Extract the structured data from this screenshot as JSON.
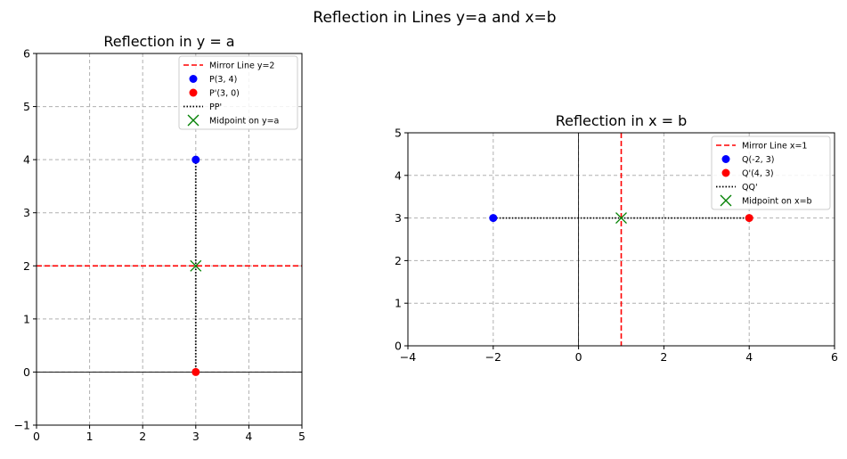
{
  "figure": {
    "suptitle": "Reflection in Lines y=a and x=b"
  },
  "colors": {
    "mirror": "#ff0000",
    "original": "#0000ff",
    "image": "#ff0000",
    "segment": "#000000",
    "midpoint": "#008000",
    "grid": "#b0b0b0"
  },
  "chart_data": [
    {
      "type": "line",
      "title": "Reflection in y = a",
      "xlim": [
        0,
        5
      ],
      "ylim": [
        -1,
        6
      ],
      "xticks": [
        0,
        1,
        2,
        3,
        4,
        5
      ],
      "xtick_labels": [
        "0",
        "1",
        "2",
        "3",
        "4",
        "5"
      ],
      "yticks": [
        -1,
        0,
        1,
        2,
        3,
        4,
        5,
        6
      ],
      "ytick_labels": [
        "−1",
        "0",
        "1",
        "2",
        "3",
        "4",
        "5",
        "6"
      ],
      "grid": true,
      "legend_position": "top-right",
      "axis_lines": {
        "y": 0
      },
      "mirror": {
        "orientation": "horizontal",
        "value": 2,
        "label": "Mirror Line y=2"
      },
      "original": {
        "x": 3,
        "y": 4,
        "label": "P(3, 4)"
      },
      "image": {
        "x": 3,
        "y": 0,
        "label": "P'(3, 0)"
      },
      "segment": {
        "x": [
          3,
          3
        ],
        "y": [
          4,
          0
        ],
        "label": "PP'"
      },
      "midpoint": {
        "x": 3,
        "y": 2,
        "label": "Midpoint on y=a"
      }
    },
    {
      "type": "line",
      "title": "Reflection in x = b",
      "xlim": [
        -4,
        6
      ],
      "ylim": [
        0,
        5
      ],
      "xticks": [
        -4,
        -2,
        0,
        2,
        4,
        6
      ],
      "xtick_labels": [
        "−4",
        "−2",
        "0",
        "2",
        "4",
        "6"
      ],
      "yticks": [
        0,
        1,
        2,
        3,
        4,
        5
      ],
      "ytick_labels": [
        "0",
        "1",
        "2",
        "3",
        "4",
        "5"
      ],
      "grid": true,
      "legend_position": "top-right",
      "axis_lines": {
        "x": 0
      },
      "mirror": {
        "orientation": "vertical",
        "value": 1,
        "label": "Mirror Line x=1"
      },
      "original": {
        "x": -2,
        "y": 3,
        "label": "Q(-2, 3)"
      },
      "image": {
        "x": 4,
        "y": 3,
        "label": "Q'(4, 3)"
      },
      "segment": {
        "x": [
          -2,
          4
        ],
        "y": [
          3,
          3
        ],
        "label": "QQ'"
      },
      "midpoint": {
        "x": 1,
        "y": 3,
        "label": "Midpoint on x=b"
      }
    }
  ]
}
